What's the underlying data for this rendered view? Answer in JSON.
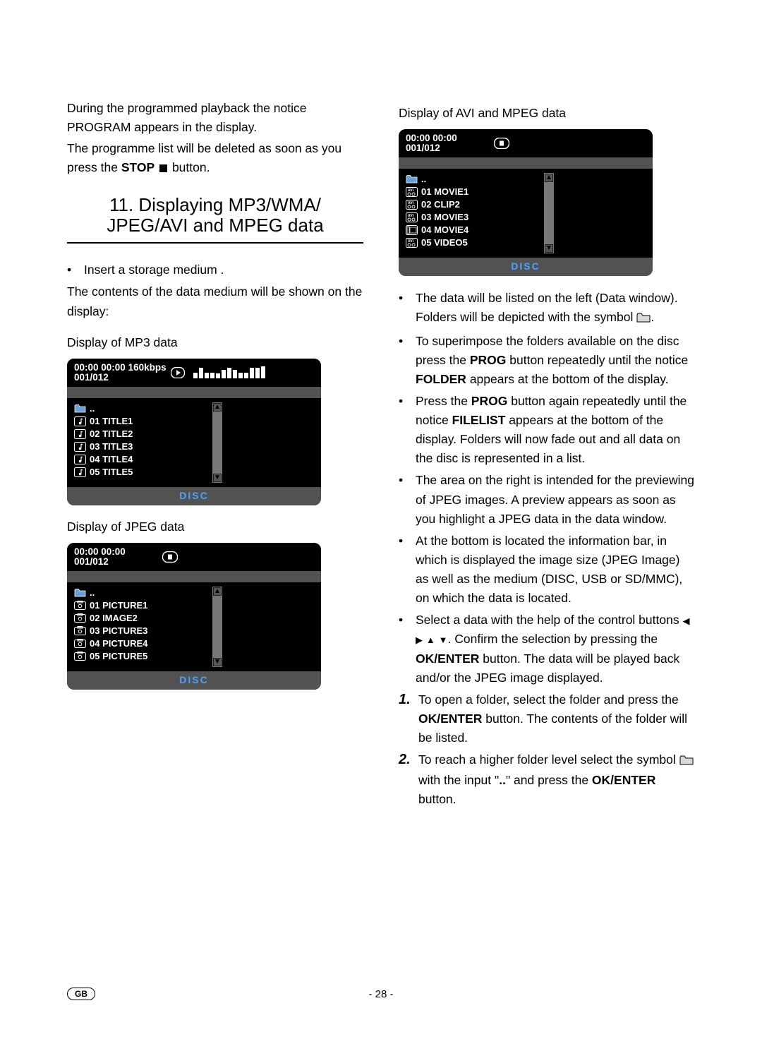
{
  "colors": {
    "page_bg": "#ffffff",
    "text": "#000000",
    "osd_bg": "#000000",
    "osd_strip": "#525252",
    "osd_footer_bg": "#525252",
    "osd_footer_text": "#4aa3ff",
    "osd_scroll": "#777777"
  },
  "left": {
    "intro1": "During the programmed playback the notice PROGRAM appears in the display.",
    "intro2_a": "The programme list will be deleted as soon as you press the ",
    "intro2_stop": "STOP",
    "intro2_b": " button.",
    "section_number": "11.",
    "section_title_a": "Displaying MP3/WMA/",
    "section_title_b": "JPEG/AVI and MPEG data",
    "bullet_insert": "Insert a storage medium .",
    "after_insert": "The contents of the data medium will be shown on the display:",
    "heading_mp3": "Display of MP3 data",
    "heading_jpeg": "Display of JPEG data"
  },
  "right": {
    "heading_avi": "Display of AVI and MPEG data",
    "b1_a": "The data will be listed on the left (Data window). Folders will be depicted with the symbol ",
    "b1_b": ".",
    "b2_a": "To superimpose the folders available on the disc press the ",
    "b2_prog": "PROG",
    "b2_b": " button repeatedly until the notice ",
    "b2_folder": "FOLDER",
    "b2_c": " appears at the bottom of the display.",
    "b3_a": "Press the ",
    "b3_prog": "PROG",
    "b3_b": " button again repeatedly until the notice ",
    "b3_filelist": "FILELIST",
    "b3_c": " appears at the bottom of the display. Folders will now fade out and all data on the disc is represented in a list.",
    "b4": "The area on the right is intended for the previewing of JPEG images. A preview appears as soon as you highlight a JPEG data in the data window.",
    "b5": "At the bottom is located the information bar, in which is displayed the image size (JPEG Image) as well as the medium (DISC, USB or SD/MMC), on which the data is located.",
    "b6_a": "Select a data with the help of the control buttons ",
    "b6_b": ". Confirm the selection by pressing the ",
    "b6_ok": "OK/ENTER",
    "b6_c": " button. The data will be played back and/or the JPEG image displayed.",
    "n1_a": "To open a folder, select the folder and press the ",
    "n1_ok": "OK/ENTER",
    "n1_b": " button. The contents of the folder will be listed.",
    "n2_a": "To reach a higher folder level select the symbol ",
    "n2_b": " with the input \"",
    "n2_dots": "..",
    "n2_c": "\" and press the ",
    "n2_ok": "OK/ENTER",
    "n2_d": " button.",
    "num1": "1.",
    "num2": "2."
  },
  "osd_mp3": {
    "time_line1": "00:00  00:00 160kbps",
    "time_line2": "001/012",
    "bars": [
      4,
      9,
      4,
      4,
      3,
      7,
      9,
      7,
      4,
      4,
      9,
      9,
      10
    ],
    "files": [
      {
        "icon": "music",
        "label": "01  TITLE1"
      },
      {
        "icon": "music",
        "label": "02  TITLE2"
      },
      {
        "icon": "music",
        "label": "03  TITLE3"
      },
      {
        "icon": "music",
        "label": "04  TITLE4"
      },
      {
        "icon": "music",
        "label": "05  TITLE5"
      }
    ],
    "parent": "..",
    "footer": "DISC"
  },
  "osd_jpeg": {
    "time_line1": "00:00  00:00",
    "time_line2": "001/012",
    "files": [
      {
        "icon": "photo",
        "label": "01  PICTURE1"
      },
      {
        "icon": "photo",
        "label": "02  IMAGE2"
      },
      {
        "icon": "photo",
        "label": "03  PICTURE3"
      },
      {
        "icon": "photo",
        "label": "04  PICTURE4"
      },
      {
        "icon": "photo",
        "label": "05  PICTURE5"
      }
    ],
    "parent": "..",
    "footer": "DISC"
  },
  "osd_avi": {
    "time_line1": "00:00  00:00",
    "time_line2": "001/012",
    "files": [
      {
        "icon": "video",
        "label": "01  MOVIE1"
      },
      {
        "icon": "video",
        "label": "02  CLIP2"
      },
      {
        "icon": "video",
        "label": "03  MOVIE3"
      },
      {
        "icon": "video2",
        "label": "04  MOVIE4"
      },
      {
        "icon": "video",
        "label": "05  VIDEO5"
      }
    ],
    "parent": "..",
    "footer": "DISC"
  },
  "footer": {
    "lang": "GB",
    "page": "- 28 -"
  }
}
